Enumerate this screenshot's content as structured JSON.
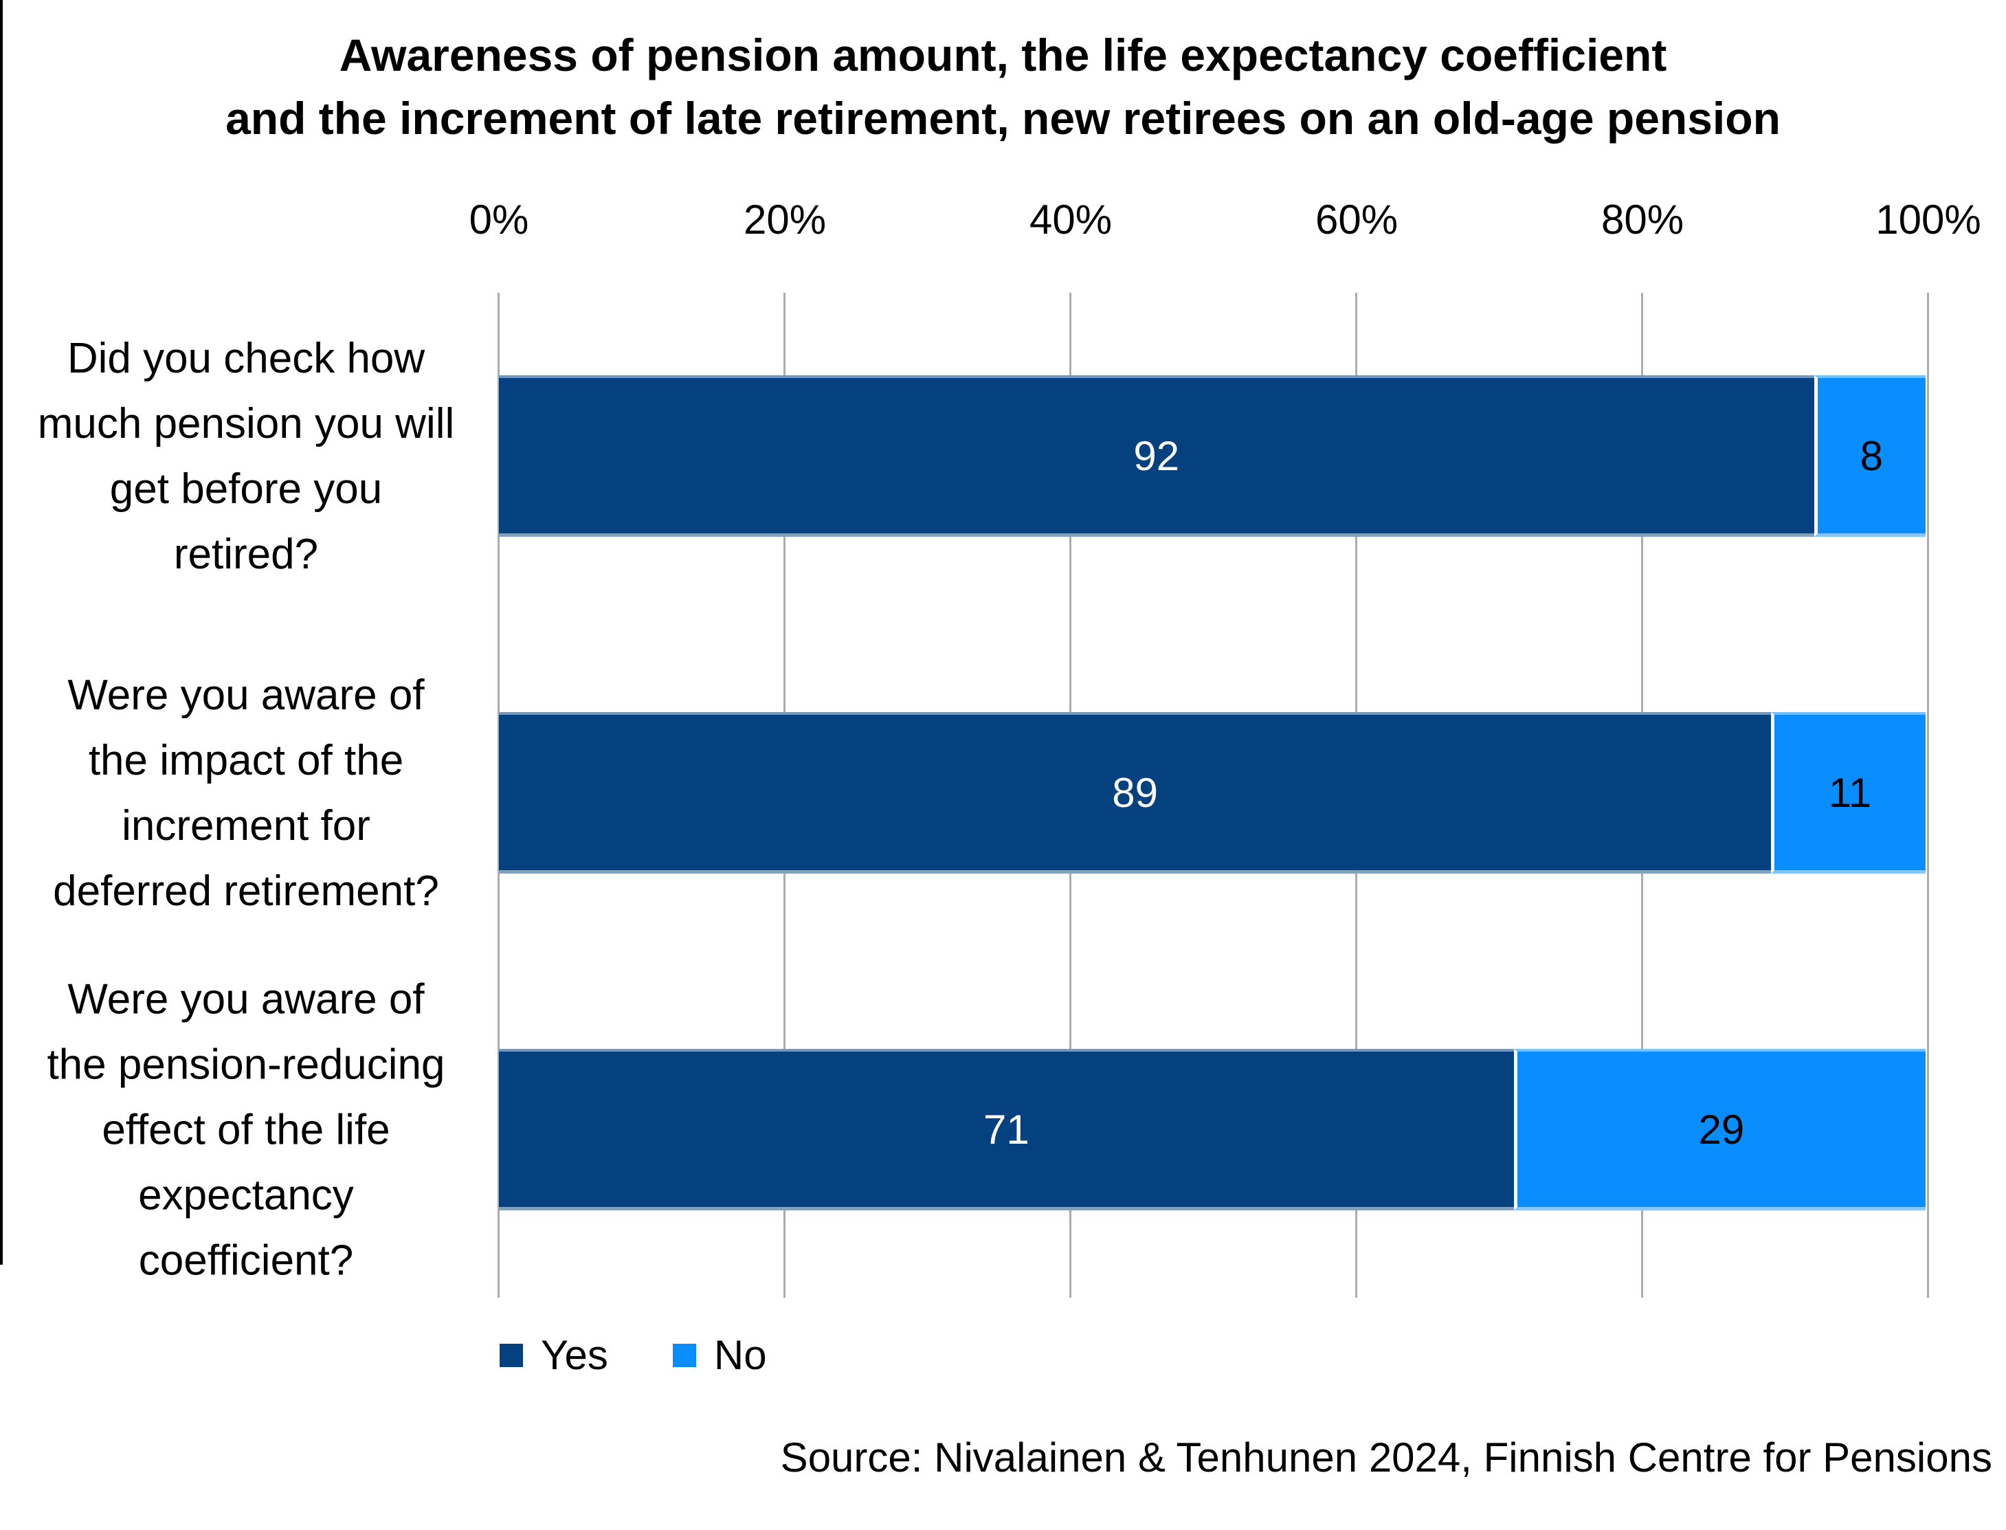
{
  "title": {
    "line1": "Awareness of pension amount, the life expectancy coefficient",
    "line2": "and the increment of late retirement, new retirees on an old-age pension"
  },
  "chart_data": {
    "type": "bar",
    "orientation": "horizontal",
    "stacked": true,
    "value_unit": "percent",
    "xlim": [
      0,
      100
    ],
    "x_ticks": [
      "0%",
      "20%",
      "40%",
      "60%",
      "80%",
      "100%"
    ],
    "grid": "vertical gridlines",
    "legend_position": "bottom-left",
    "categories": [
      "Did you check how\nmuch pension you will\nget before you\nretired?",
      "Were you aware of\nthe impact of the\nincrement for\ndeferred retirement?",
      "Were you aware of\nthe pension-reducing\neffect of the life\nexpectancy\ncoefficient?"
    ],
    "series": [
      {
        "name": "Yes",
        "color": "#05417E",
        "label_color": "#FFFFFF",
        "values": [
          92,
          89,
          71
        ]
      },
      {
        "name": "No",
        "color": "#0A8DFF",
        "label_color": "#000000",
        "values": [
          8,
          11,
          29
        ]
      }
    ]
  },
  "legend": {
    "items": [
      {
        "label": "Yes",
        "color": "#05417E"
      },
      {
        "label": "No",
        "color": "#0A8DFF"
      }
    ]
  },
  "source": "Source: Nivalainen & Tenhunen 2024, Finnish Centre for Pensions",
  "colors": {
    "yes_bar": "#05417E",
    "no_bar": "#0A8DFF",
    "gridline": "#ACACAC",
    "background": "#FFFFFF",
    "text": "#000000"
  }
}
